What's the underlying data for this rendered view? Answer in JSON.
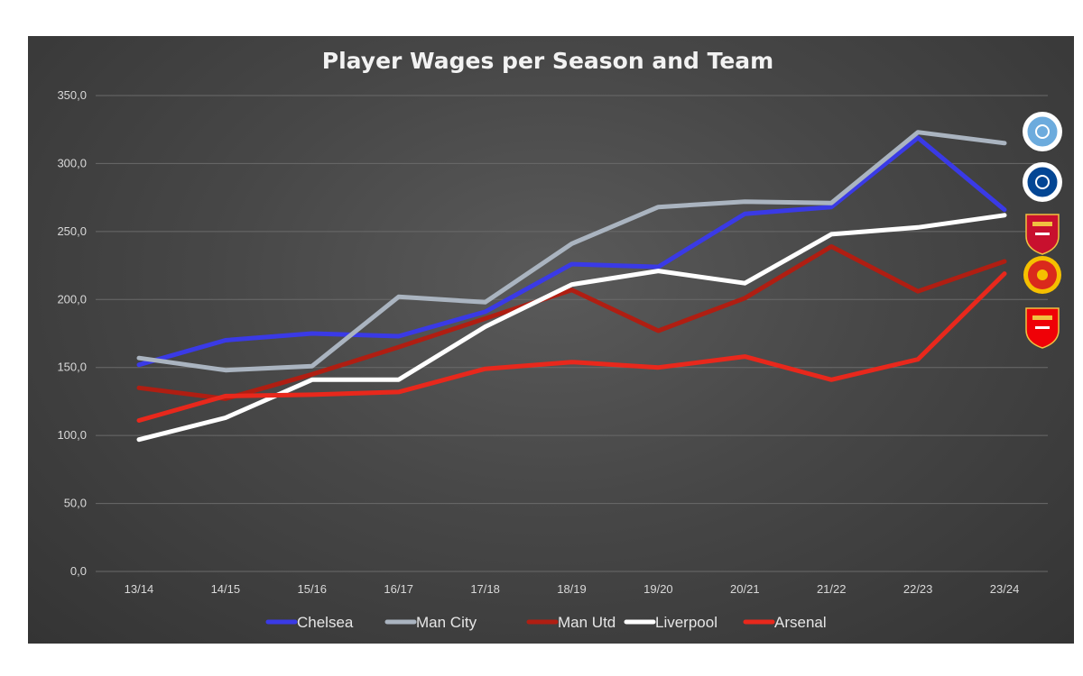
{
  "chart_data": {
    "type": "line",
    "title": "Player Wages per Season and Team",
    "xlabel": "",
    "ylabel": "",
    "categories": [
      "13/14",
      "14/15",
      "15/16",
      "16/17",
      "17/18",
      "18/19",
      "19/20",
      "20/21",
      "21/22",
      "22/23",
      "23/24"
    ],
    "ylim": [
      0,
      350
    ],
    "yticks": [
      0,
      50,
      100,
      150,
      200,
      250,
      300,
      350
    ],
    "ytick_labels": [
      "0,0",
      "50,0",
      "100,0",
      "150,0",
      "200,0",
      "250,0",
      "300,0",
      "350,0"
    ],
    "grid": true,
    "legend_position": "bottom",
    "series": [
      {
        "name": "Chelsea",
        "color": "#3a3ae6",
        "values": [
          152,
          170,
          175,
          173,
          191,
          226,
          224,
          263,
          268,
          319,
          266
        ]
      },
      {
        "name": "Man City",
        "color": "#aab4c0",
        "values": [
          157,
          148,
          151,
          202,
          198,
          241,
          268,
          272,
          271,
          323,
          315
        ]
      },
      {
        "name": "Man Utd",
        "color": "#b01e12",
        "values": [
          135,
          127,
          145,
          165,
          186,
          207,
          177,
          201,
          239,
          206,
          228
        ]
      },
      {
        "name": "Liverpool",
        "color": "#ffffff",
        "values": [
          97,
          113,
          141,
          141,
          180,
          211,
          221,
          212,
          248,
          253,
          262
        ]
      },
      {
        "name": "Arsenal",
        "color": "#e8281c",
        "values": [
          111,
          129,
          130,
          132,
          149,
          154,
          150,
          158,
          141,
          156,
          219
        ]
      }
    ],
    "badges": [
      {
        "icon": "man-city-crest-icon",
        "color": "#6cabdd"
      },
      {
        "icon": "chelsea-crest-icon",
        "color": "#034694"
      },
      {
        "icon": "liverpool-crest-icon",
        "color": "#c8102e"
      },
      {
        "icon": "man-utd-crest-icon",
        "color": "#da291c"
      },
      {
        "icon": "arsenal-crest-icon",
        "color": "#ef0107"
      }
    ]
  }
}
